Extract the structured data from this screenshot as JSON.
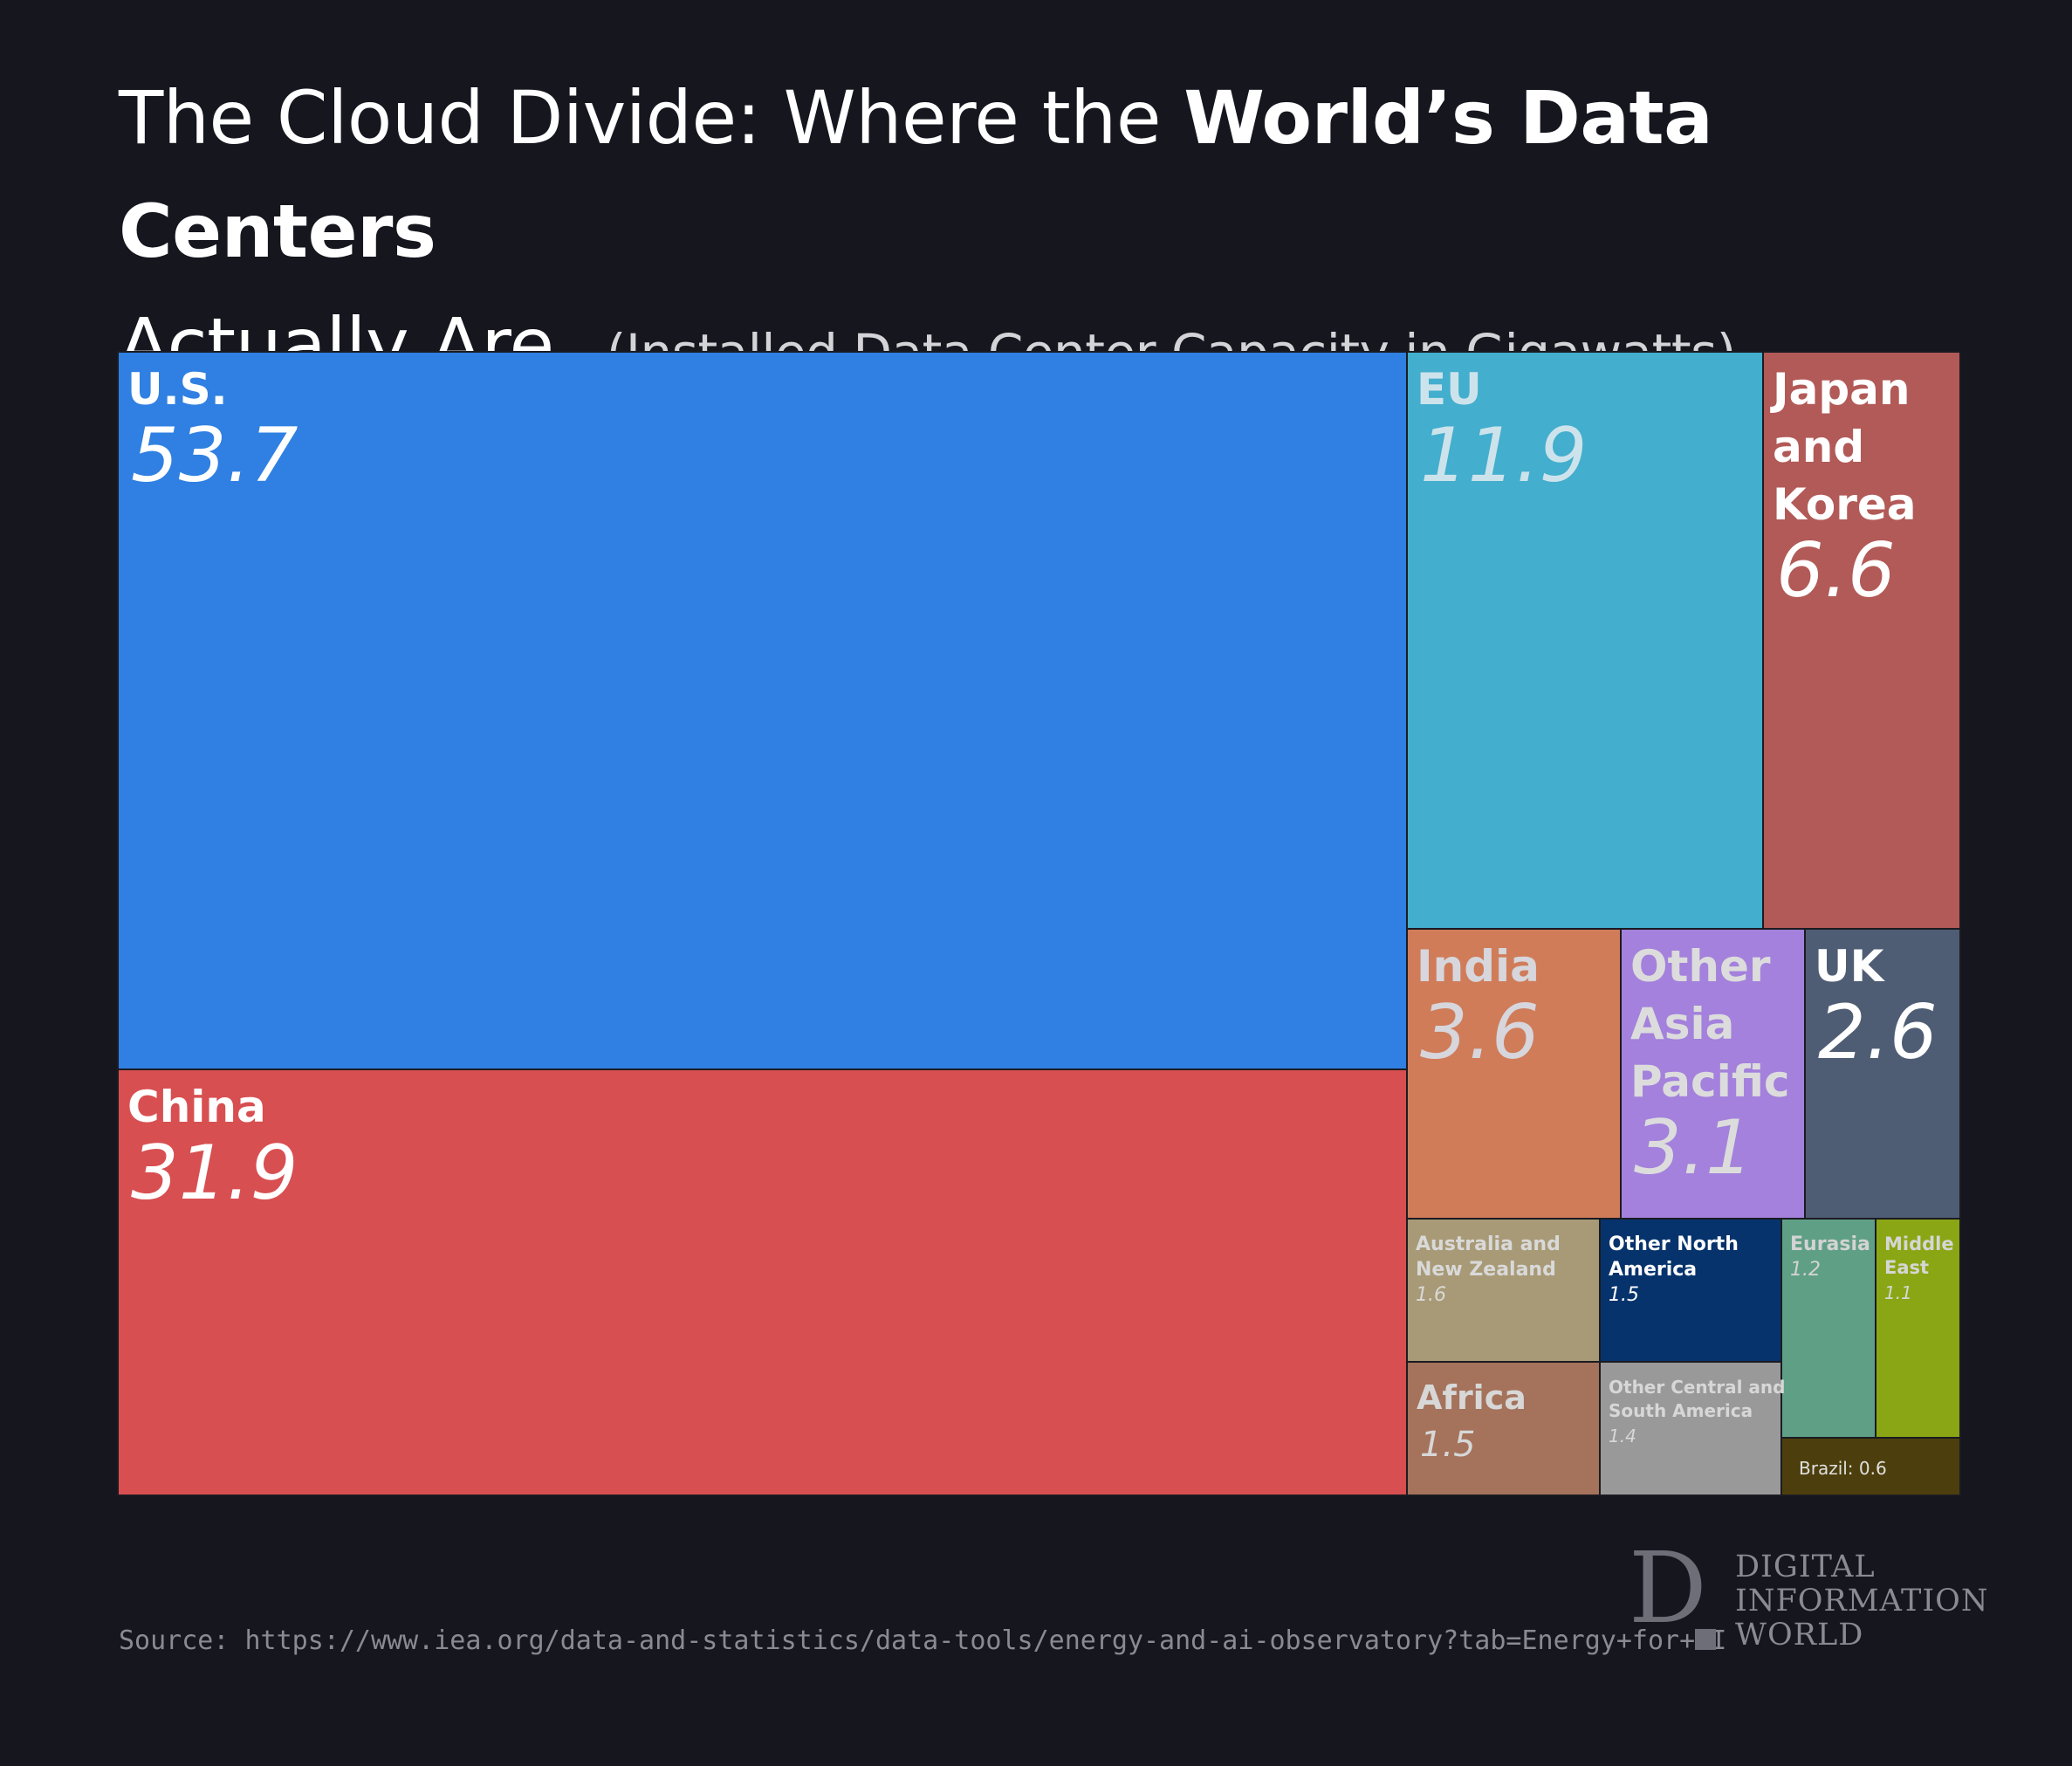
{
  "title_part1": "The Cloud Divide: Where the ",
  "title_bold": "World’s Data Centers",
  "title_part2": "Actually Are",
  "subtitle": "(Installed Data Center Capacity in Gigawatts)",
  "source": "Source: https://www.iea.org/data-and-statistics/data-tools/energy-and-ai-observatory?tab=Energy+for+AI",
  "logo": {
    "mark": "D",
    "line1": "DIGITAL",
    "line2": "INFORMATION",
    "line3": "WORLD"
  },
  "chart_data": {
    "type": "treemap",
    "unit": "GW",
    "items": [
      {
        "id": "us",
        "label": "U.S.",
        "value": 53.7,
        "color": "#2f80e2",
        "text_color": "#ffffff"
      },
      {
        "id": "china",
        "label": "China",
        "value": 31.9,
        "color": "#d84f51",
        "text_color": "#ffffff"
      },
      {
        "id": "eu",
        "label": "EU",
        "value": 11.9,
        "color": "#43aecd",
        "text_color": "#cde3ec"
      },
      {
        "id": "japan-korea",
        "label": "Japan and Korea",
        "value": 6.6,
        "color": "#b25a57",
        "text_color": "#ffffff"
      },
      {
        "id": "india",
        "label": "India",
        "value": 3.6,
        "color": "#d07c59",
        "text_color": "#d6d6dc"
      },
      {
        "id": "other-asia-pacific",
        "label": "Other Asia Pacific",
        "value": 3.1,
        "color": "#a381dc",
        "text_color": "#dcdcdc"
      },
      {
        "id": "uk",
        "label": "UK",
        "value": 2.6,
        "color": "#4f5d74",
        "text_color": "#ffffff"
      },
      {
        "id": "australia-nz",
        "label": "Australia and New Zealand",
        "value": 1.6,
        "color": "#a89a76",
        "text_color": "#d9d9d9"
      },
      {
        "id": "other-north-america",
        "label": "Other North America",
        "value": 1.5,
        "color": "#06336c",
        "text_color": "#ffffff"
      },
      {
        "id": "eurasia",
        "label": "Eurasia",
        "value": 1.2,
        "color": "#5f9f86",
        "text_color": "#d3d3d3"
      },
      {
        "id": "middle-east",
        "label": "Middle East",
        "value": 1.1,
        "color": "#8aa614",
        "text_color": "#d6d6d6"
      },
      {
        "id": "africa",
        "label": "Africa",
        "value": 1.5,
        "color": "#a5725b",
        "text_color": "#d7d7d7"
      },
      {
        "id": "other-central-south-america",
        "label": "Other Central and South America",
        "value": 1.4,
        "color": "#999999",
        "text_color": "#d7d7d7"
      },
      {
        "id": "brazil",
        "label": "Brazil",
        "value": 0.6,
        "color": "#4d3f0d",
        "text_color": "#e0e0e0",
        "inline_label": "Brazil: 0.6"
      }
    ]
  }
}
